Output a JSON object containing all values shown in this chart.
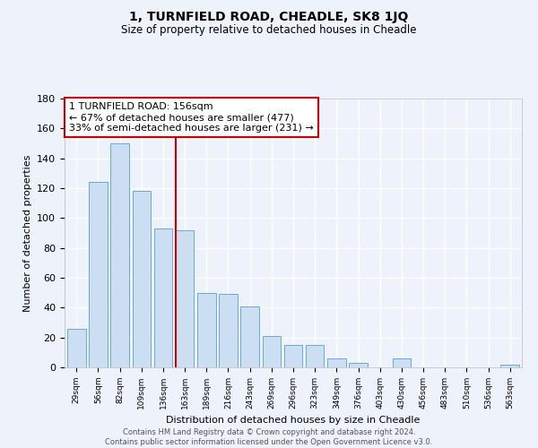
{
  "title": "1, TURNFIELD ROAD, CHEADLE, SK8 1JQ",
  "subtitle": "Size of property relative to detached houses in Cheadle",
  "xlabel": "Distribution of detached houses by size in Cheadle",
  "ylabel": "Number of detached properties",
  "bar_labels": [
    "29sqm",
    "56sqm",
    "82sqm",
    "109sqm",
    "136sqm",
    "163sqm",
    "189sqm",
    "216sqm",
    "243sqm",
    "269sqm",
    "296sqm",
    "323sqm",
    "349sqm",
    "376sqm",
    "403sqm",
    "430sqm",
    "456sqm",
    "483sqm",
    "510sqm",
    "536sqm",
    "563sqm"
  ],
  "bar_values": [
    26,
    124,
    150,
    118,
    93,
    92,
    50,
    49,
    41,
    21,
    15,
    15,
    6,
    3,
    0,
    6,
    0,
    0,
    0,
    0,
    2
  ],
  "bar_color": "#ccdff2",
  "bar_edge_color": "#6aaad4",
  "highlight_line_color": "#cc0000",
  "annotation_title": "1 TURNFIELD ROAD: 156sqm",
  "annotation_line1": "← 67% of detached houses are smaller (477)",
  "annotation_line2": "33% of semi-detached houses are larger (231) →",
  "annotation_box_color": "white",
  "annotation_box_edge": "#cc0000",
  "ylim": [
    0,
    180
  ],
  "yticks": [
    0,
    20,
    40,
    60,
    80,
    100,
    120,
    140,
    160,
    180
  ],
  "footer_line1": "Contains HM Land Registry data © Crown copyright and database right 2024.",
  "footer_line2": "Contains public sector information licensed under the Open Government Licence v3.0.",
  "background_color": "#eef2fa"
}
